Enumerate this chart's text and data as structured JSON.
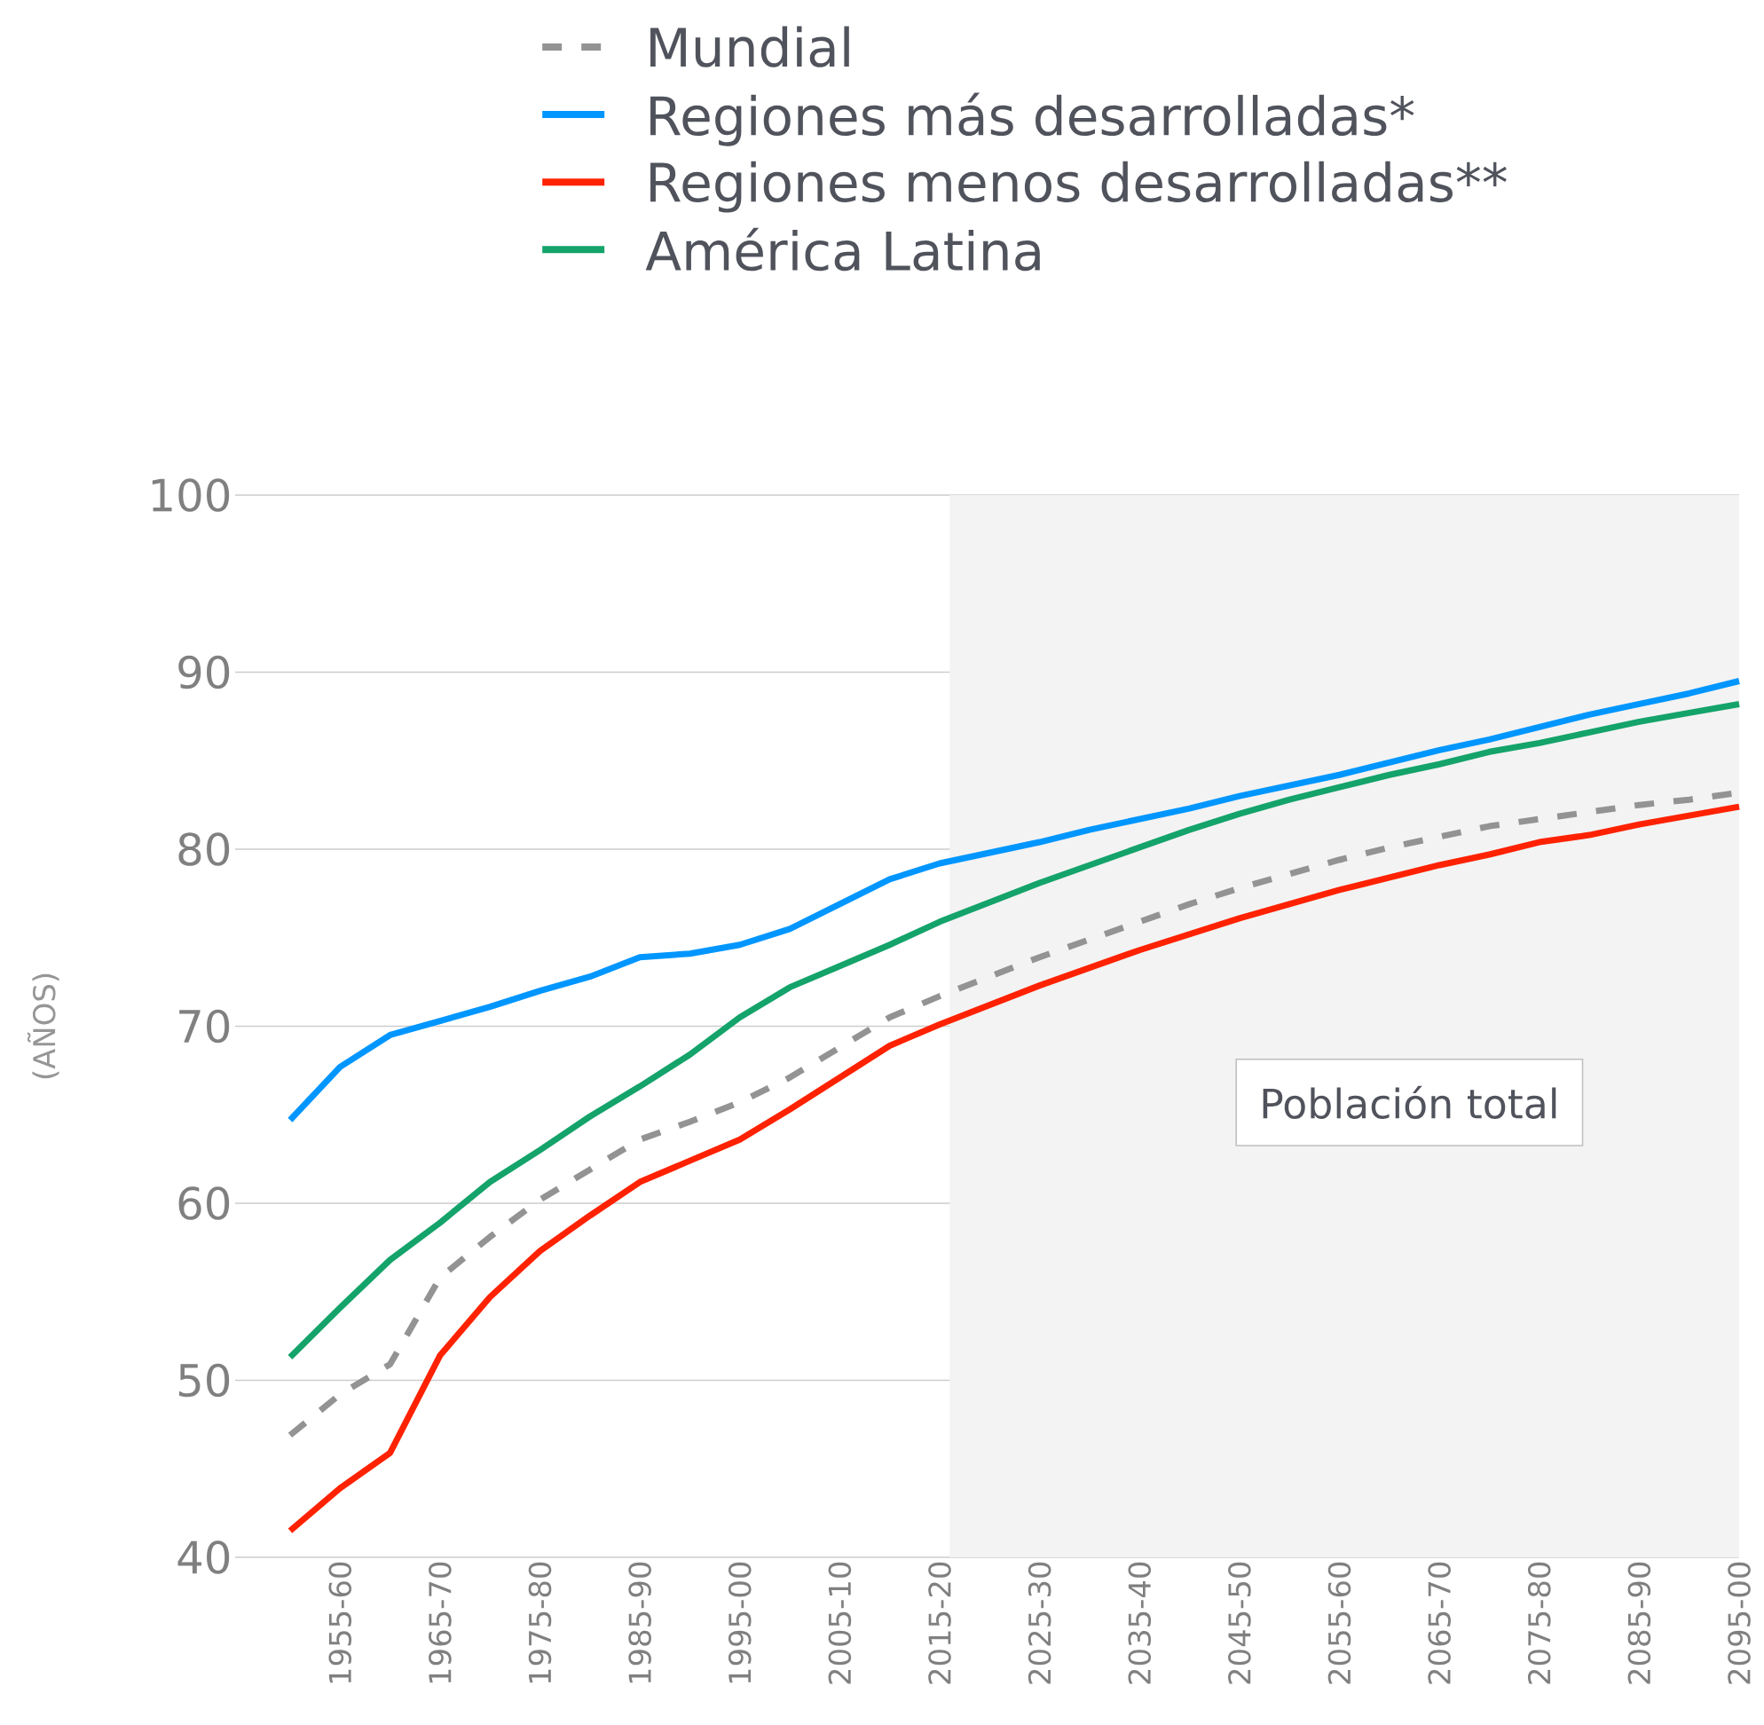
{
  "chart_data": {
    "type": "line",
    "ylabel": "(AÑOS)",
    "categories": [
      null,
      "1955-60",
      null,
      "1965-70",
      null,
      "1975-80",
      null,
      "1985-90",
      null,
      "1995-00",
      null,
      "2005-10",
      null,
      "2015-20",
      null,
      "2025-30",
      null,
      "2035-40",
      null,
      "2045-50",
      null,
      "2055-60",
      null,
      "2065-70",
      null,
      "2075-80",
      null,
      "2085-90",
      null,
      "2095-00"
    ],
    "series": [
      {
        "name": "Mundial",
        "color": "#939393",
        "line_style": "dashed",
        "values": [
          46.9,
          49.2,
          50.9,
          55.8,
          58.1,
          60.2,
          61.9,
          63.6,
          64.6,
          65.7,
          67.1,
          68.8,
          70.5,
          71.7,
          72.8,
          73.9,
          74.9,
          75.9,
          76.9,
          77.8,
          78.6,
          79.4,
          80.1,
          80.7,
          81.3,
          81.7,
          82.1,
          82.5,
          82.8,
          83.2
        ]
      },
      {
        "name": "Regiones más desarrolladas*",
        "color": "#0096ff",
        "line_style": "solid",
        "values": [
          64.7,
          67.7,
          69.5,
          70.3,
          71.1,
          72.0,
          72.8,
          73.9,
          74.1,
          74.6,
          75.5,
          76.9,
          78.3,
          79.2,
          79.8,
          80.4,
          81.1,
          81.7,
          82.3,
          83.0,
          83.6,
          84.2,
          84.9,
          85.6,
          86.2,
          86.9,
          87.6,
          88.2,
          88.8,
          89.5
        ]
      },
      {
        "name": "Regiones menos desarrolladas**",
        "color": "#ff2200",
        "line_style": "solid",
        "values": [
          41.5,
          43.9,
          45.9,
          51.4,
          54.7,
          57.3,
          59.3,
          61.2,
          62.4,
          63.6,
          65.3,
          67.1,
          68.9,
          70.1,
          71.2,
          72.3,
          73.3,
          74.3,
          75.2,
          76.1,
          76.9,
          77.7,
          78.4,
          79.1,
          79.7,
          80.4,
          80.8,
          81.4,
          81.9,
          82.4
        ]
      },
      {
        "name": "América Latina",
        "color": "#14a36a",
        "line_style": "solid",
        "values": [
          51.3,
          54.1,
          56.8,
          58.9,
          61.2,
          63.0,
          64.9,
          66.6,
          68.4,
          70.5,
          72.2,
          73.4,
          74.6,
          75.9,
          77.0,
          78.1,
          79.1,
          80.1,
          81.1,
          82.0,
          82.8,
          83.5,
          84.2,
          84.8,
          85.5,
          86.0,
          86.6,
          87.2,
          87.7,
          88.2
        ]
      }
    ],
    "ylim": [
      40,
      100
    ],
    "yticks": [
      40,
      50,
      60,
      70,
      80,
      90,
      100
    ],
    "grid": "y",
    "legend": "top",
    "bands": [
      {
        "axis": "x",
        "from": "2015-20",
        "to": "2095-00",
        "color": "#f3f3f3"
      }
    ],
    "annotations": [
      "Población total"
    ]
  }
}
